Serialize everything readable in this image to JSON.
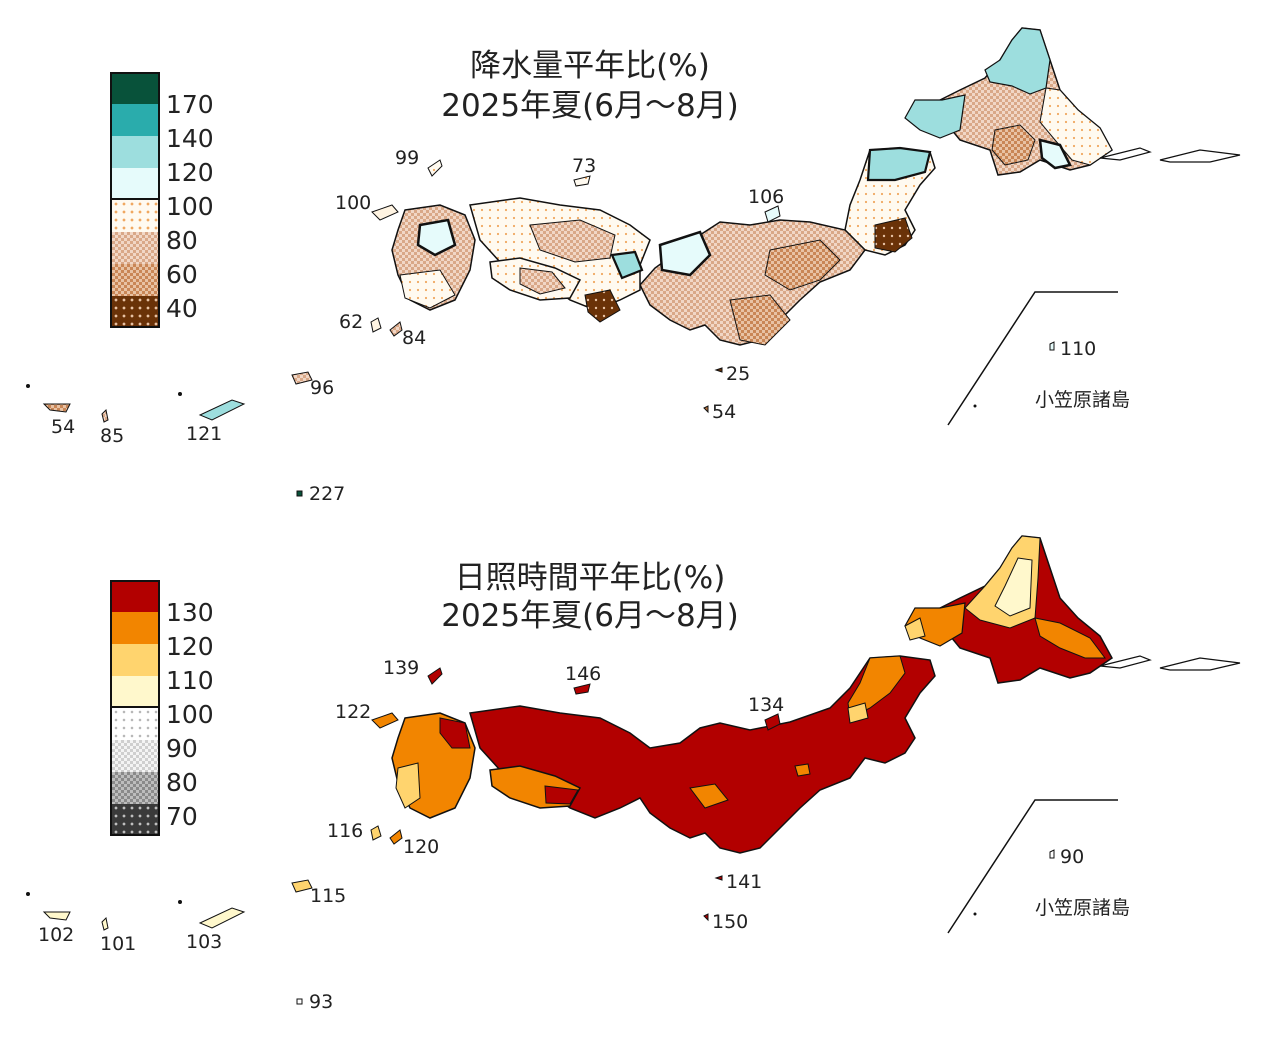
{
  "precip": {
    "title": "降水量平年比(%)",
    "subtitle": "2025年夏(6月～8月)",
    "legend": {
      "labels": [
        "170",
        "140",
        "120",
        "100",
        "80",
        "60",
        "40"
      ],
      "colors": [
        "#08523a",
        "#2aacac",
        "#9ddede",
        "#e6fbfb",
        "#fff4e2",
        "#e8c4ac",
        "#b8743f",
        "#6a3208"
      ]
    },
    "stations": {
      "tsushima": "99",
      "oki": "73",
      "sado": "106",
      "goto": "100",
      "koshiki": "62",
      "tanegashima": "84",
      "izu_hachijo": "25",
      "izu_south": "54",
      "amami": "96",
      "okinawa": "121",
      "miyako": "85",
      "yaeyama": "54",
      "daito": "227",
      "chichijima": "110"
    },
    "bonin_label": "小笠原諸島"
  },
  "sunshine": {
    "title": "日照時間平年比(%)",
    "subtitle": "2025年夏(6月～8月)",
    "legend": {
      "labels": [
        "130",
        "120",
        "110",
        "100",
        "90",
        "80",
        "70"
      ],
      "colors": [
        "#b20000",
        "#f28500",
        "#ffd46e",
        "#fff8cc",
        "#ffffff",
        "#e8e8e8",
        "#a6a6a6",
        "#3a3a3a"
      ]
    },
    "stations": {
      "tsushima": "139",
      "oki": "146",
      "sado": "134",
      "goto": "122",
      "koshiki": "116",
      "tanegashima": "120",
      "izu_hachijo": "141",
      "izu_south": "150",
      "amami": "115",
      "okinawa": "103",
      "miyako": "101",
      "yaeyama": "102",
      "daito": "93",
      "chichijima": "90"
    },
    "bonin_label": "小笠原諸島"
  }
}
